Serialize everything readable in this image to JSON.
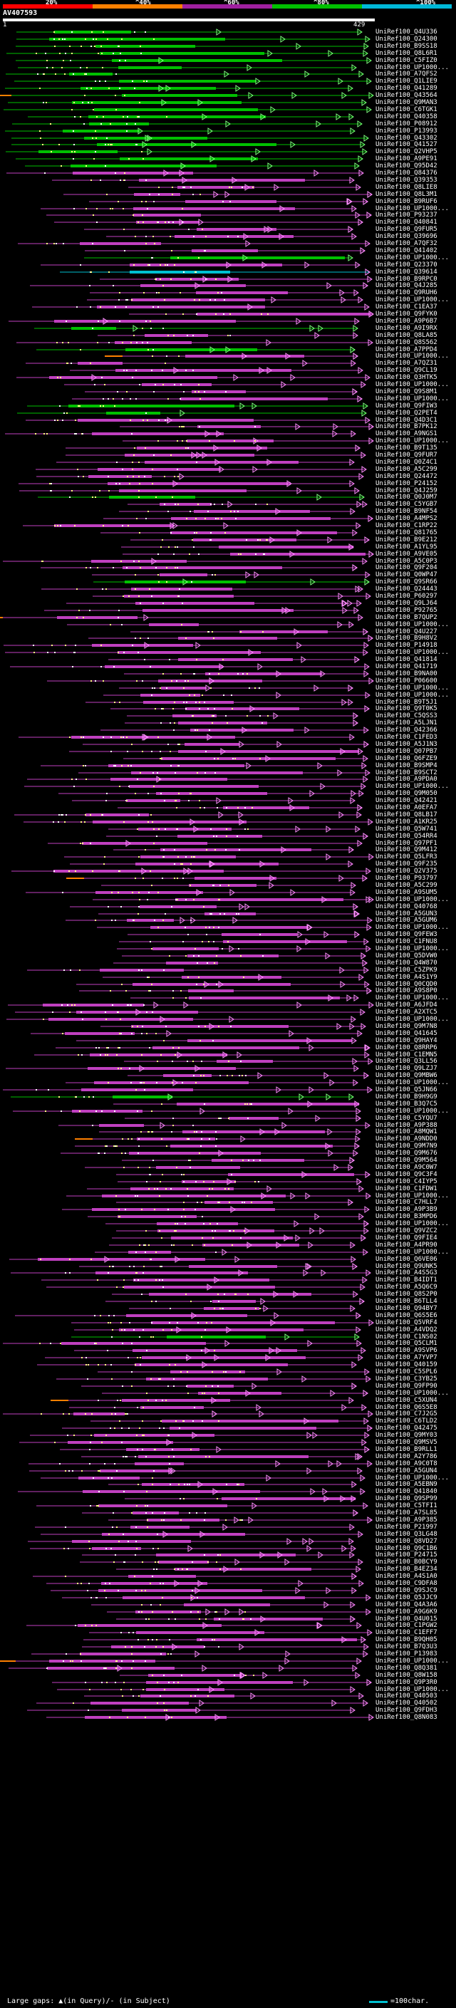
{
  "scale": {
    "labels": [
      "20%",
      "^40%",
      "^60%",
      "^80%",
      "^100%"
    ],
    "colors": [
      "#ff0000",
      "#ff8000",
      "#a020a0",
      "#00c000",
      "#00b8d8"
    ]
  },
  "query": {
    "name": "AV407593",
    "start": "1",
    "end": "429"
  },
  "hits": [
    "UniRef100_Q4U336",
    "UniRef100_Q24300",
    "UniRef100_B9SS18",
    "UniRef100_Q8L6R1",
    "UniRef100_C5FIZ0",
    "UniRef100_UP1000...",
    "UniRef100_A7QFS2",
    "UniRef100_Q1LIE9",
    "UniRef100_Q41289",
    "UniRef100_Q43564",
    "UniRef100_Q9MAN3",
    "UniRef100_C6TGK1",
    "UniRef100_Q40358",
    "UniRef100_P08912",
    "UniRef100_P13993",
    "UniRef100_Q43302",
    "UniRef100_Q41527",
    "UniRef100_Q2VHP5",
    "UniRef100_A9PE91",
    "UniRef100_Q95D42",
    "UniRef100_Q84376",
    "UniRef100_Q39353",
    "UniRef100_Q8LIE8",
    "UniRef100_Q8L3M1",
    "UniRef100_B9RUF6",
    "UniRef100_UP1000...",
    "UniRef100_P93237",
    "UniRef100_Q40841",
    "UniRef100_Q9FUR5",
    "UniRef100_Q39696",
    "UniRef100_A7QF32",
    "UniRef100_Q41402",
    "UniRef100_UP1000...",
    "UniRef100_Q23370",
    "UniRef100_Q39614",
    "UniRef100_B9RPC0",
    "UniRef100_Q4J285",
    "UniRef100_Q9RUH6",
    "UniRef100_UP1000...",
    "UniRef100_C1EA37",
    "UniRef100_Q9FYK0",
    "UniRef100_A9P6B7",
    "UniRef100_A9I9RX",
    "UniRef100_Q8LA85",
    "UniRef100_Q8S562",
    "UniRef100_A7PPD4",
    "UniRef100_UP1000...",
    "UniRef100_A7QZ31",
    "UniRef100_Q9CL19",
    "UniRef100_Q3HTK5",
    "UniRef100_UP1000...",
    "UniRef100_Q9S8M1",
    "UniRef100_UP1000...",
    "UniRef100_Q9FIW3",
    "UniRef100_Q2PET4",
    "UniRef100_Q4D3C1",
    "UniRef100_B7PK12",
    "UniRef100_A9NGS1",
    "UniRef100_UP1000...",
    "UniRef100_B9T135",
    "UniRef100_Q9FUR7",
    "UniRef100_Q0Z4C1",
    "UniRef100_A5C299",
    "UniRef100_Q24472",
    "UniRef100_P24152",
    "UniRef100_Q4J259",
    "UniRef100_Q0J0M7",
    "UniRef100_C5YGB7",
    "UniRef100_B9NF54",
    "UniRef100_A4MPS2",
    "UniRef100_C1RP22",
    "UniRef100_Q81765",
    "UniRef100_B9E212",
    "UniRef100_A1YL95",
    "UniRef100_A9VE05",
    "UniRef100_A5C0P3",
    "UniRef100_Q9F204",
    "UniRef100_Q0WP47",
    "UniRef100_Q9SR66",
    "UniRef100_Q24443",
    "UniRef100_P60297",
    "UniRef100_Q9LJ64",
    "UniRef100_P92765",
    "UniRef100_B7QUP2",
    "UniRef100_UP1000...",
    "UniRef100_Q4U227",
    "UniRef100_B9H8V2",
    "UniRef100_P14918",
    "UniRef100_UP1000...",
    "UniRef100_Q41814",
    "UniRef100_Q41719",
    "UniRef100_B9NA00",
    "UniRef100_P06600",
    "UniRef100_UP1000...",
    "UniRef100_UP1000...",
    "UniRef100_B9T5J1",
    "UniRef100_Q9T0K5",
    "UniRef100_C5QSS3",
    "UniRef100_A5LJN1",
    "UniRef100_Q42366",
    "UniRef100_C1FED3",
    "UniRef100_A5J1N3",
    "UniRef100_Q07PB7",
    "UniRef100_Q6FZE9",
    "UniRef100_B9SMP4",
    "UniRef100_B9SCT2",
    "UniRef100_A9PDA0",
    "UniRef100_UP1000...",
    "UniRef100_Q9M050",
    "UniRef100_Q42421",
    "UniRef100_A0EFA7",
    "UniRef100_Q8LB17",
    "UniRef100_A1KR25",
    "UniRef100_Q5W741",
    "UniRef100_Q54RR4",
    "UniRef100_Q97PF1",
    "UniRef100_Q9M412",
    "UniRef100_Q5LFR3",
    "UniRef100_Q9F235",
    "UniRef100_Q2V375",
    "UniRef100_P93797",
    "UniRef100_A5C299",
    "UniRef100_A9SUM5",
    "UniRef100_UP1000...",
    "UniRef100_Q40768",
    "UniRef100_A5GUN3",
    "UniRef100_A5GUM6",
    "UniRef100_UP1000...",
    "UniRef100_Q9FEW3",
    "UniRef100_C1FNU8",
    "UniRef100_UP1000...",
    "UniRef100_Q5DVW0",
    "UniRef100_Q4W870",
    "UniRef100_C5ZPK9",
    "UniRef100_A4S1Y9",
    "UniRef100_Q0CQD0",
    "UniRef100_A9S8P0",
    "UniRef100_UP1000...",
    "UniRef100_A6JFD4",
    "UniRef100_A2XTC5",
    "UniRef100_UP1000...",
    "UniRef100_Q9M7N8",
    "UniRef100_Q41645",
    "UniRef100_Q9HAY4",
    "UniRef100_Q8RRP6",
    "UniRef100_C1EMN5",
    "UniRef100_Q3LL56",
    "UniRef100_Q9LZJ7",
    "UniRef100_Q9MBW6",
    "UniRef100_UP1000...",
    "UniRef100_Q5JN66",
    "UniRef100_B9H9G9",
    "UniRef100_B3Q7C5",
    "UniRef100_UP1000...",
    "UniRef100_C5YQU7",
    "UniRef100_A9P388",
    "UniRef100_A8MQW1",
    "UniRef100_A9NDD0",
    "UniRef100_Q9M7N9",
    "UniRef100_Q9M676",
    "UniRef100_Q9M564",
    "UniRef100_A9C0W7",
    "UniRef100_Q9C3F4",
    "UniRef100_C4IYP5",
    "UniRef100_C1FDW1",
    "UniRef100_UP1000...",
    "UniRef100_C7HLL7",
    "UniRef100_A9P3B9",
    "UniRef100_B3MPD6",
    "UniRef100_UP1000...",
    "UniRef100_Q9VZC2",
    "UniRef100_Q9FIE4",
    "UniRef100_A4PR90",
    "UniRef100_UP1000...",
    "UniRef100_Q6VE06",
    "UniRef100_Q9UNK5",
    "UniRef100_A4S5G3",
    "UniRef100_B4IDT1",
    "UniRef100_A5Q6C9",
    "UniRef100_Q8S2P0",
    "UniRef100_B6TLL4",
    "UniRef100_Q94BY7",
    "UniRef100_Q6S5E6",
    "UniRef100_Q5VRF4",
    "UniRef100_A4VDQ2",
    "UniRef100_C1NS02",
    "UniRef100_Q5CLM1",
    "UniRef100_A9SVP6",
    "UniRef100_A7YVP7",
    "UniRef100_Q40159",
    "UniRef100_C5SPL6",
    "UniRef100_C3YB25",
    "UniRef100_Q9FP90",
    "UniRef100_UP1000...",
    "UniRef100_C5XUN4",
    "UniRef100_Q6S5E8",
    "UniRef100_C7J2G5",
    "UniRef100_C6TLD2",
    "UniRef100_Q42475",
    "UniRef100_Q9MY03",
    "UniRef100_Q9MSV5",
    "UniRef100_B9RLL1",
    "UniRef100_A2Y786",
    "UniRef100_A9C0T8",
    "UniRef100_A5GUN4",
    "UniRef100_UP1000...",
    "UniRef100_A5EBN9",
    "UniRef100_Q41840",
    "UniRef100_Q9SP99",
    "UniRef100_C5TFI1",
    "UniRef100_A7SL85",
    "UniRef100_A9P385",
    "UniRef100_P21997",
    "UniRef100_Q3LG48",
    "UniRef100_Q8VD27",
    "UniRef100_Q9C1B6",
    "UniRef100_P24715",
    "UniRef100_B0BCY9",
    "UniRef100_B4EZ34",
    "UniRef100_A4S1A0",
    "UniRef100_C9DFA8",
    "UniRef100_Q9SJC9",
    "UniRef100_Q5JJC9",
    "UniRef100_Q4A3A6",
    "UniRef100_A9G6K9",
    "UniRef100_Q4U015",
    "UniRef100_C1PGW2",
    "UniRef100_C1EFF7",
    "UniRef100_B9QH05",
    "UniRef100_B7Q3U3",
    "UniRef100_P13983",
    "UniRef100_UP1000...",
    "UniRef100_Q8Q381",
    "UniRef100_Q8W158",
    "UniRef100_Q9P3R0",
    "UniRef100_UP1000...",
    "UniRef100_Q40503",
    "UniRef100_Q40502",
    "UniRef100_Q9FDH3",
    "UniRef100_Q8N083"
  ],
  "legend": {
    "text": "Large gaps: ▲(in Query)/- (in Subject)",
    "scale_text": "=100char."
  }
}
